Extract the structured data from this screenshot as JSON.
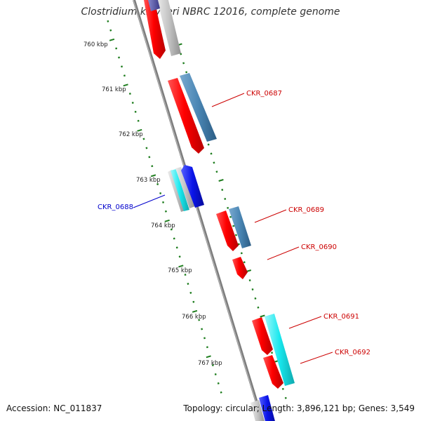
{
  "title": "Clostridium kluyveri NBRC 12016, complete genome",
  "footer": {
    "accession": "Accession: NC_011837",
    "summary": "Topology: circular; Length: 3,896,121 bp; Genes: 3,549"
  },
  "colors": {
    "backbone": "#8a8a8a",
    "tick": "#1e7d1e",
    "plus_strand_label": "#cc0000",
    "minus_strand_label": "#0000cc",
    "red_gene": "#ff1010",
    "steelblue_gene": "#4a86b4",
    "cyan_gene": "#18e8ee",
    "grey_gene": "#c4c4c4",
    "blue_gene": "#0a14e8"
  },
  "scale_labels": [
    "760 kbp",
    "761 kbp",
    "762 kbp",
    "763 kbp",
    "764 kbp",
    "765 kbp",
    "766 kbp",
    "767 kbp"
  ],
  "genes": [
    {
      "label": "CKR_0687",
      "strand": "plus",
      "color": "red_gene"
    },
    {
      "label": "CKR_0688",
      "strand": "minus",
      "color": "cyan_gene"
    },
    {
      "label": "CKR_0689",
      "strand": "plus",
      "color": "red_gene"
    },
    {
      "label": "CKR_0690",
      "strand": "plus",
      "color": "red_gene"
    },
    {
      "label": "CKR_0691",
      "strand": "plus",
      "color": "red_gene"
    },
    {
      "label": "CKR_0692",
      "strand": "plus",
      "color": "red_gene"
    }
  ]
}
